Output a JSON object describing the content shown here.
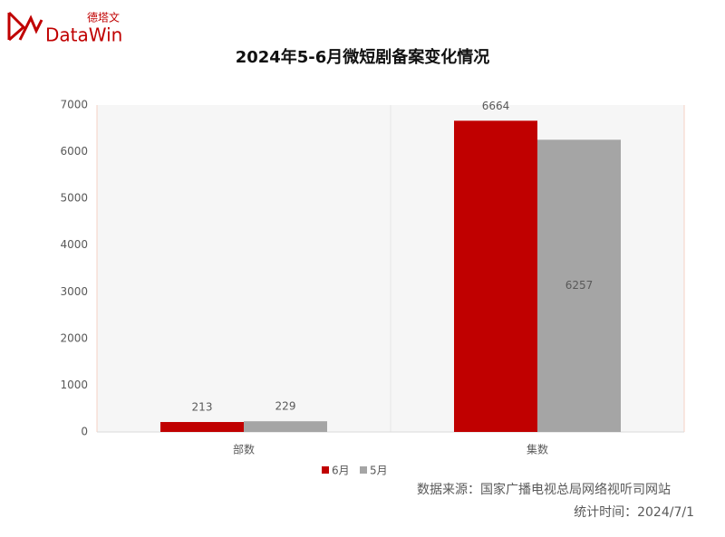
{
  "logo": {
    "name": "DataWin",
    "chinese_name": "德塔文"
  },
  "chart_data": {
    "type": "bar",
    "title": "2024年5-6月微短剧备案变化情况",
    "categories": [
      "部数",
      "集数"
    ],
    "series": [
      {
        "name": "6月",
        "color": "#c00000",
        "values": [
          213,
          6664
        ],
        "label_positions": [
          "above",
          "above"
        ]
      },
      {
        "name": "5月",
        "color": "#a5a5a5",
        "values": [
          229,
          6257
        ],
        "label_positions": [
          "above",
          "inside"
        ]
      }
    ],
    "ylim": [
      0,
      7000
    ],
    "yticks": [
      0,
      1000,
      2000,
      3000,
      4000,
      5000,
      6000,
      7000
    ],
    "legend": "bottom"
  },
  "footer": {
    "source": "数据来源：国家广播电视总局网络视听司网站",
    "date": "统计时间：2024/7/1"
  }
}
